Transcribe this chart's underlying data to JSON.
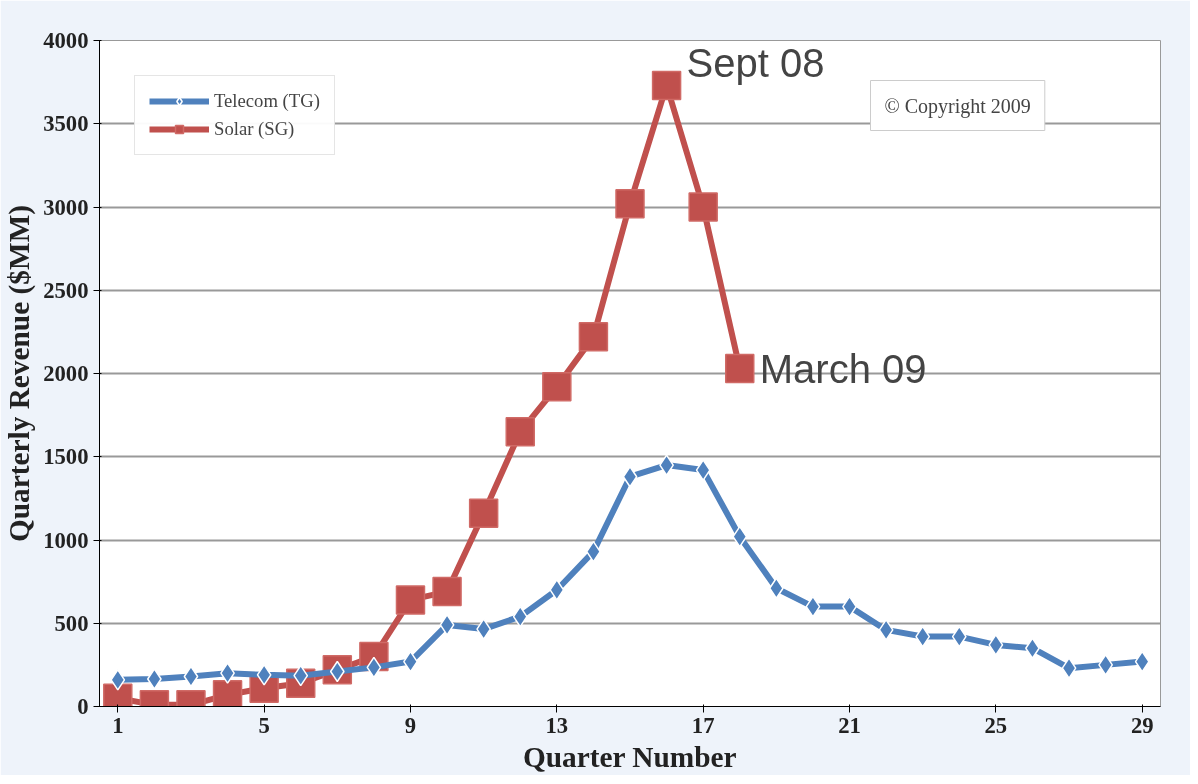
{
  "chart_data": {
    "type": "line",
    "xlabel": "Quarter Number",
    "ylabel": "Quarterly Revenue ($MM)",
    "xlim": [
      0.5,
      29.5
    ],
    "ylim": [
      0,
      4000
    ],
    "xticks": [
      1,
      5,
      9,
      13,
      17,
      21,
      25,
      29
    ],
    "yticks": [
      0,
      500,
      1000,
      1500,
      2000,
      2500,
      3000,
      3500,
      4000
    ],
    "grid": "y",
    "legend": "top left",
    "series": [
      {
        "name": "Telecom (TG)",
        "color": "#4f81bd",
        "marker": "diamond",
        "x": [
          1,
          2,
          3,
          4,
          5,
          6,
          7,
          8,
          9,
          10,
          11,
          12,
          13,
          14,
          15,
          16,
          17,
          18,
          19,
          20,
          21,
          22,
          23,
          24,
          25,
          26,
          27,
          28,
          29
        ],
        "values": [
          160,
          165,
          180,
          200,
          190,
          185,
          210,
          235,
          270,
          490,
          465,
          540,
          700,
          930,
          1380,
          1450,
          1420,
          1020,
          710,
          600,
          600,
          460,
          420,
          420,
          370,
          350,
          230,
          250,
          270
        ]
      },
      {
        "name": "Solar (SG)",
        "color": "#c0504d",
        "marker": "square",
        "x": [
          1,
          2,
          3,
          4,
          5,
          6,
          7,
          8,
          9,
          10,
          11,
          12,
          13,
          14,
          15,
          16,
          17,
          18
        ],
        "values": [
          50,
          10,
          10,
          70,
          110,
          140,
          220,
          300,
          640,
          690,
          1160,
          1650,
          1920,
          2220,
          3020,
          3730,
          3000,
          2030
        ]
      }
    ],
    "annotations": [
      {
        "text": "Sept 08",
        "x": 16,
        "y": 3730
      },
      {
        "text": "March 09",
        "x": 18,
        "y": 2030
      },
      "© Copyright 2009"
    ]
  }
}
